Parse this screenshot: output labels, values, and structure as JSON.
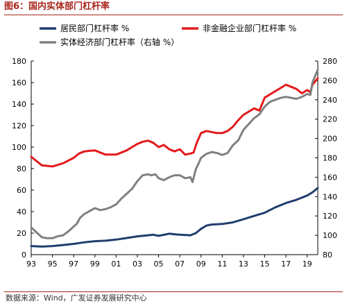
{
  "caption": "图6：国内实体部门杠杆率",
  "source": "数据来源：Wind，广发证券发展研究中心",
  "chart_data": {
    "type": "line",
    "title": "",
    "x_tick_labels": [
      "93",
      "95",
      "97",
      "99",
      "01",
      "03",
      "05",
      "07",
      "09",
      "11",
      "13",
      "15",
      "17",
      "19"
    ],
    "x_range": [
      1993.0,
      2020.0
    ],
    "y_left": {
      "range": [
        0,
        180
      ],
      "ticks": [
        0,
        20,
        40,
        60,
        80,
        100,
        120,
        140,
        160,
        180
      ]
    },
    "y_right": {
      "range": [
        80,
        280
      ],
      "ticks": [
        80,
        100,
        120,
        140,
        160,
        180,
        200,
        220,
        240,
        260,
        280
      ]
    },
    "legend_placement": "top",
    "series": [
      {
        "name": "居民部门杠杆率 %",
        "axis": "left",
        "color": "#1f3d6e",
        "x": [
          1993.0,
          1994.0,
          1995.0,
          1996.0,
          1997.0,
          1998.0,
          1999.0,
          2000.0,
          2001.0,
          2002.0,
          2003.0,
          2004.0,
          2004.5,
          2005.0,
          2006.0,
          2006.5,
          2007.0,
          2008.0,
          2008.5,
          2009.0,
          2009.5,
          2010.0,
          2011.0,
          2012.0,
          2013.0,
          2014.0,
          2015.0,
          2016.0,
          2017.0,
          2018.0,
          2019.0,
          2019.5,
          2020.0
        ],
        "y": [
          8,
          7.5,
          8,
          9,
          10,
          11.5,
          12.5,
          13,
          14,
          15.5,
          17,
          18,
          18.5,
          17.5,
          19.5,
          19,
          18.5,
          18,
          20,
          24,
          27,
          28,
          28.5,
          30,
          33,
          36,
          39,
          44,
          48,
          51,
          55,
          58,
          62
        ]
      },
      {
        "name": "非金融企业部门杠杆率 %",
        "axis": "left",
        "color": "#e31a1c",
        "x": [
          1993.0,
          1994.0,
          1995.0,
          1996.0,
          1997.0,
          1997.5,
          1998.0,
          1998.5,
          1999.0,
          1999.5,
          2000.0,
          2001.0,
          2001.5,
          2002.0,
          2002.5,
          2003.0,
          2003.5,
          2004.0,
          2004.5,
          2005.0,
          2005.5,
          2006.0,
          2006.5,
          2007.0,
          2007.5,
          2008.0,
          2008.3,
          2008.6,
          2009.0,
          2009.5,
          2010.0,
          2010.5,
          2011.0,
          2011.5,
          2012.0,
          2012.5,
          2013.0,
          2013.5,
          2014.0,
          2014.5,
          2015.0,
          2015.5,
          2016.0,
          2016.5,
          2017.0,
          2017.5,
          2018.0,
          2018.5,
          2019.0,
          2019.3,
          2019.5,
          2020.0
        ],
        "y": [
          91,
          83,
          82,
          85,
          90,
          94,
          96,
          96.5,
          97,
          95,
          93,
          93,
          95,
          97,
          100,
          103,
          105,
          106,
          104,
          100,
          102,
          98,
          96,
          98,
          93,
          94,
          95,
          104,
          113,
          115,
          114,
          113,
          113,
          115,
          119,
          125,
          130,
          133,
          136,
          134,
          146,
          149,
          152,
          155,
          158,
          156,
          154,
          150,
          153,
          151,
          158,
          164
        ]
      },
      {
        "name": "实体经济部门杠杆率（右轴 %）",
        "axis": "right",
        "color": "#808080",
        "x": [
          1993.0,
          1993.5,
          1994.0,
          1994.5,
          1995.0,
          1995.5,
          1996.0,
          1996.5,
          1997.0,
          1997.3,
          1997.6,
          1998.0,
          1998.5,
          1999.0,
          1999.5,
          2000.0,
          2000.5,
          2001.0,
          2001.5,
          2002.0,
          2002.5,
          2003.0,
          2003.5,
          2004.0,
          2004.3,
          2004.7,
          2005.0,
          2005.5,
          2006.0,
          2006.5,
          2007.0,
          2007.5,
          2008.0,
          2008.2,
          2008.5,
          2008.8,
          2009.0,
          2009.5,
          2010.0,
          2010.5,
          2011.0,
          2011.5,
          2012.0,
          2012.5,
          2013.0,
          2013.5,
          2014.0,
          2014.5,
          2015.0,
          2015.5,
          2016.0,
          2016.5,
          2017.0,
          2017.5,
          2018.0,
          2018.5,
          2019.0,
          2019.3,
          2019.5,
          2020.0
        ],
        "y": [
          108,
          103,
          98,
          97,
          97,
          99,
          100,
          104,
          109,
          112,
          118,
          122,
          125,
          128,
          126,
          127,
          129,
          132,
          138,
          143,
          148,
          156,
          162,
          163,
          162,
          163,
          159,
          157,
          160,
          162,
          162,
          159,
          160,
          155,
          168,
          175,
          180,
          184,
          186,
          185,
          183,
          185,
          193,
          198,
          209,
          215,
          221,
          225,
          233,
          238,
          240,
          242,
          243,
          242,
          241,
          243,
          246,
          245,
          258,
          271
        ]
      }
    ]
  }
}
